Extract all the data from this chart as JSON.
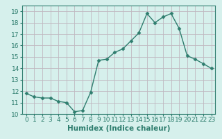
{
  "x": [
    0,
    1,
    2,
    3,
    4,
    5,
    6,
    7,
    8,
    9,
    10,
    11,
    12,
    13,
    14,
    15,
    16,
    17,
    18,
    19,
    20,
    21,
    22,
    23
  ],
  "y": [
    11.8,
    11.5,
    11.4,
    11.4,
    11.1,
    11.0,
    10.2,
    10.3,
    11.9,
    14.7,
    14.8,
    15.4,
    15.7,
    16.4,
    17.1,
    18.8,
    18.0,
    18.5,
    18.8,
    17.5,
    15.1,
    14.8,
    14.4,
    14.0
  ],
  "line_color": "#2e7d6e",
  "marker": "D",
  "marker_size": 2.5,
  "linewidth": 1.0,
  "xlabel": "Humidex (Indice chaleur)",
  "xlim": [
    -0.5,
    23.5
  ],
  "ylim": [
    10,
    19.5
  ],
  "yticks": [
    10,
    11,
    12,
    13,
    14,
    15,
    16,
    17,
    18,
    19
  ],
  "xticks": [
    0,
    1,
    2,
    3,
    4,
    5,
    6,
    7,
    8,
    9,
    10,
    11,
    12,
    13,
    14,
    15,
    16,
    17,
    18,
    19,
    20,
    21,
    22,
    23
  ],
  "bg_color": "#d6f0ec",
  "grid_color": "#c0b8c0",
  "tick_color": "#2e7d6e",
  "label_color": "#2e7d6e",
  "xlabel_fontsize": 7.5,
  "tick_fontsize": 6.5
}
